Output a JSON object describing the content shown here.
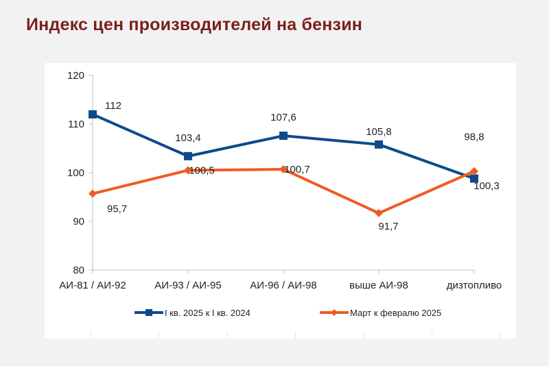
{
  "header": {
    "title": "Индекс цен производителей на бензин"
  },
  "colors": {
    "series1": "#0e4a8a",
    "series2": "#f05a22",
    "title": "#7a1f1b",
    "axis": "#bfbfbf"
  },
  "chart_data": {
    "type": "line",
    "title": "",
    "xlabel": "",
    "ylabel": "",
    "categories": [
      "АИ-81 / АИ-92",
      "АИ-93 / АИ-95",
      "АИ-96 / АИ-98",
      "выше АИ-98",
      "дизтопливо"
    ],
    "yticks": [
      "80",
      "90",
      "100",
      "110",
      "120"
    ],
    "ylim": [
      80,
      120
    ],
    "grid": false,
    "legend": "bottom",
    "series": [
      {
        "name": "I кв. 2025 к I кв. 2024",
        "values": [
          112,
          103.4,
          107.6,
          105.8,
          98.8
        ],
        "labels": [
          "112",
          "103,4",
          "107,6",
          "105,8",
          "98,8"
        ],
        "marker": "square",
        "color": "#0e4a8a"
      },
      {
        "name": "Март к февралю 2025",
        "values": [
          95.7,
          100.5,
          100.7,
          91.7,
          100.3
        ],
        "labels": [
          "95,7",
          "100,5",
          "100,7",
          "91,7",
          "100,3"
        ],
        "marker": "diamond",
        "color": "#f05a22"
      }
    ]
  }
}
